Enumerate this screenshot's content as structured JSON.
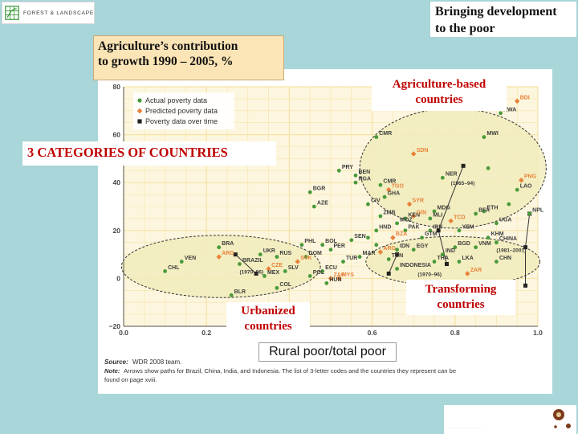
{
  "logo": {
    "text": "FOREST & LANDSCAPE",
    "icon": "grid-leaf-icon",
    "color": "#3a9a3a"
  },
  "header": {
    "title_line1": "Bringing development",
    "title_line2": "to the poor"
  },
  "callouts": {
    "agri_line1": "Agriculture’s contribution",
    "agri_line2": "to growth 1990 – 2005, %",
    "categories": "3 CATEGORIES OF COUNTRIES",
    "based_line1": "Agriculture-based",
    "based_line2": "countries",
    "transforming_line1": "Transforming",
    "transforming_line2": "countries",
    "urbanized_line1": "Urbanized",
    "urbanized_line2": "countries",
    "rural_axis": "Rural poor/total poor"
  },
  "source": {
    "source_label": "Source:",
    "source_text": "WDR 2008 team.",
    "note_label": "Note:",
    "note_text_1": "Arrows show paths for Brazil, China, India, and Indonesia. The list of 3-letter codes and the countries they represent can be",
    "note_text_2": "found on page xviii."
  },
  "colors": {
    "actual": "#4a9a3a",
    "predicted": "#e8823a",
    "over_time": "#222222",
    "ellipse_fill": "#f1ecbc",
    "grid": "#f6e3a3",
    "accent_red": "#c00000"
  },
  "chart_data": {
    "type": "scatter",
    "xlabel": "Rural poor/total poor",
    "ylabel": "",
    "xlim": [
      0,
      1
    ],
    "ylim": [
      -20,
      80
    ],
    "x_ticks": [
      "0.0",
      "0.2",
      "0.4",
      "0.6",
      "0.8",
      "1.0"
    ],
    "y_ticks": [
      "−20",
      "0",
      "20",
      "40",
      "60",
      "80"
    ],
    "x_tick_values": [
      0,
      0.2,
      0.4,
      0.6,
      0.8,
      1.0
    ],
    "y_tick_values": [
      -20,
      0,
      20,
      40,
      60,
      80
    ],
    "grid": true,
    "legend": {
      "position": "top-left",
      "entries": [
        {
          "label": "Actual poverty data",
          "marker": "circle",
          "color": "#4a9a3a"
        },
        {
          "label": "Predicted poverty data",
          "marker": "diamond",
          "color": "#e8823a"
        },
        {
          "label": "Poverty data over time",
          "marker": "square",
          "color": "#222222"
        }
      ]
    },
    "groups": [
      {
        "name": "Agriculture-based countries",
        "cx": 0.795,
        "cy": 46,
        "rx": 0.225,
        "ry": 25
      },
      {
        "name": "Transforming countries",
        "cx": 0.795,
        "cy": 7,
        "rx": 0.21,
        "ry": 10.5
      },
      {
        "name": "Urbanized countries",
        "cx": 0.235,
        "cy": 5,
        "rx": 0.24,
        "ry": 13
      }
    ],
    "points": [
      {
        "label": "BDI",
        "x": 0.95,
        "y": 74,
        "kind": "predicted"
      },
      {
        "label": "RWA",
        "x": 0.91,
        "y": 69,
        "kind": "actual"
      },
      {
        "label": "MWI",
        "x": 0.87,
        "y": 59,
        "kind": "actual"
      },
      {
        "label": "CMR",
        "x": 0.61,
        "y": 59,
        "kind": "actual"
      },
      {
        "label": "SDN",
        "x": 0.7,
        "y": 52,
        "kind": "predicted"
      },
      {
        "label": "PRY",
        "x": 0.52,
        "y": 45,
        "kind": "actual"
      },
      {
        "label": "BEN",
        "x": 0.56,
        "y": 43,
        "kind": "actual"
      },
      {
        "label": "NGA",
        "x": 0.56,
        "y": 40,
        "kind": "actual"
      },
      {
        "label": "NER",
        "x": 0.77,
        "y": 42,
        "kind": "actual"
      },
      {
        "label": "PNG",
        "x": 0.96,
        "y": 41,
        "kind": "predicted"
      },
      {
        "label": "LAO",
        "x": 0.95,
        "y": 37,
        "kind": "actual"
      },
      {
        "label": "CMR",
        "x": 0.62,
        "y": 39,
        "kind": "actual"
      },
      {
        "label": "TGO",
        "x": 0.64,
        "y": 37,
        "kind": "predicted"
      },
      {
        "label": "GHA",
        "x": 0.63,
        "y": 34,
        "kind": "actual"
      },
      {
        "label": "BGR",
        "x": 0.45,
        "y": 36,
        "kind": "actual"
      },
      {
        "label": "AZE",
        "x": 0.46,
        "y": 30,
        "kind": "actual"
      },
      {
        "label": "CIV",
        "x": 0.59,
        "y": 31,
        "kind": "actual"
      },
      {
        "label": "SYR",
        "x": 0.69,
        "y": 31,
        "kind": "predicted"
      },
      {
        "label": "MDG",
        "x": 0.75,
        "y": 28,
        "kind": "actual"
      },
      {
        "label": "ETH",
        "x": 0.87,
        "y": 28,
        "kind": "actual"
      },
      {
        "label": "BFA",
        "x": 0.85,
        "y": 27,
        "kind": "actual"
      },
      {
        "label": "NPL",
        "x": 0.98,
        "y": 27,
        "kind": "actual"
      },
      {
        "label": "ZMB",
        "x": 0.62,
        "y": 26,
        "kind": "actual"
      },
      {
        "label": "KEN",
        "x": 0.68,
        "y": 25,
        "kind": "actual"
      },
      {
        "label": "GIN",
        "x": 0.7,
        "y": 26,
        "kind": "predicted"
      },
      {
        "label": "MLI",
        "x": 0.74,
        "y": 25,
        "kind": "actual"
      },
      {
        "label": "TCD",
        "x": 0.79,
        "y": 24,
        "kind": "predicted"
      },
      {
        "label": "UGA",
        "x": 0.9,
        "y": 23,
        "kind": "actual"
      },
      {
        "label": "MOZ",
        "x": 0.66,
        "y": 23,
        "kind": "actual"
      },
      {
        "label": "HND",
        "x": 0.61,
        "y": 20,
        "kind": "actual"
      },
      {
        "label": "PAK",
        "x": 0.68,
        "y": 20,
        "kind": "actual"
      },
      {
        "label": "IRN",
        "x": 0.74,
        "y": 20,
        "kind": "actual"
      },
      {
        "label": "YEM",
        "x": 0.81,
        "y": 20,
        "kind": "actual"
      },
      {
        "label": "KHM",
        "x": 0.88,
        "y": 17,
        "kind": "actual"
      },
      {
        "label": "BZA",
        "x": 0.65,
        "y": 17,
        "kind": "predicted"
      },
      {
        "label": "GTM",
        "x": 0.72,
        "y": 17,
        "kind": "actual"
      },
      {
        "label": "SEN",
        "x": 0.55,
        "y": 16,
        "kind": "actual"
      },
      {
        "label": "BGD",
        "x": 0.8,
        "y": 13,
        "kind": "actual"
      },
      {
        "label": "VNM",
        "x": 0.85,
        "y": 13,
        "kind": "actual"
      },
      {
        "label": "CHINA",
        "x": 0.9,
        "y": 15,
        "kind": "actual"
      },
      {
        "label": "PHL",
        "x": 0.43,
        "y": 14,
        "kind": "actual"
      },
      {
        "label": "BOL",
        "x": 0.48,
        "y": 14,
        "kind": "actual"
      },
      {
        "label": "PER",
        "x": 0.5,
        "y": 12,
        "kind": "actual"
      },
      {
        "label": "EGY",
        "x": 0.7,
        "y": 12,
        "kind": "actual"
      },
      {
        "label": "ARG",
        "x": 0.62,
        "y": 11,
        "kind": "predicted"
      },
      {
        "label": "IDN",
        "x": 0.66,
        "y": 12,
        "kind": "actual"
      },
      {
        "label": "IND",
        "x": 0.77,
        "y": 10,
        "kind": "actual"
      },
      {
        "label": "BRA",
        "x": 0.23,
        "y": 13,
        "kind": "actual"
      },
      {
        "label": "ARG",
        "x": 0.23,
        "y": 9,
        "kind": "predicted"
      },
      {
        "label": "UKR",
        "x": 0.33,
        "y": 10,
        "kind": "actual"
      },
      {
        "label": "RUS",
        "x": 0.37,
        "y": 9,
        "kind": "actual"
      },
      {
        "label": "DOM",
        "x": 0.44,
        "y": 9,
        "kind": "actual"
      },
      {
        "label": "MAR",
        "x": 0.57,
        "y": 9,
        "kind": "actual"
      },
      {
        "label": "TUN",
        "x": 0.64,
        "y": 8,
        "kind": "actual"
      },
      {
        "label": "THA",
        "x": 0.75,
        "y": 7,
        "kind": "actual"
      },
      {
        "label": "LKA",
        "x": 0.81,
        "y": 7,
        "kind": "actual"
      },
      {
        "label": "CHN",
        "x": 0.9,
        "y": 7,
        "kind": "actual"
      },
      {
        "label": "VEN",
        "x": 0.14,
        "y": 7,
        "kind": "actual"
      },
      {
        "label": "BRAZIL",
        "x": 0.28,
        "y": 6,
        "kind": "actual"
      },
      {
        "label": "SVK",
        "x": 0.42,
        "y": 7,
        "kind": "predicted"
      },
      {
        "label": "TUR",
        "x": 0.53,
        "y": 7,
        "kind": "actual"
      },
      {
        "label": "INDONESIA",
        "x": 0.66,
        "y": 4,
        "kind": "actual"
      },
      {
        "label": "CZE",
        "x": 0.35,
        "y": 4,
        "kind": "predicted"
      },
      {
        "label": "CHL",
        "x": 0.1,
        "y": 3,
        "kind": "actual"
      },
      {
        "label": "SLV",
        "x": 0.39,
        "y": 3,
        "kind": "actual"
      },
      {
        "label": "ECU",
        "x": 0.48,
        "y": 3,
        "kind": "actual"
      },
      {
        "label": "MEX",
        "x": 0.34,
        "y": 1,
        "kind": "actual"
      },
      {
        "label": "POL",
        "x": 0.45,
        "y": 1,
        "kind": "actual"
      },
      {
        "label": "ZAF",
        "x": 0.5,
        "y": 0,
        "kind": "predicted"
      },
      {
        "label": "MYS",
        "x": 0.52,
        "y": 0,
        "kind": "predicted"
      },
      {
        "label": "ZAR",
        "x": 0.83,
        "y": 2,
        "kind": "predicted"
      },
      {
        "label": "HUN",
        "x": 0.49,
        "y": -2,
        "kind": "actual"
      },
      {
        "label": "COL",
        "x": 0.37,
        "y": -4,
        "kind": "actual"
      },
      {
        "label": "BLR",
        "x": 0.26,
        "y": -7,
        "kind": "actual"
      },
      {
        "label": "",
        "x": 0.59,
        "y": 17,
        "kind": "actual"
      },
      {
        "label": "",
        "x": 0.61,
        "y": 14,
        "kind": "actual"
      },
      {
        "label": "",
        "x": 0.88,
        "y": 46,
        "kind": "actual"
      },
      {
        "label": "",
        "x": 0.93,
        "y": 31,
        "kind": "actual"
      }
    ],
    "annotations": [
      {
        "text": "(1965–94)",
        "x": 0.79,
        "y": 39
      },
      {
        "text": "(1970–96)",
        "x": 0.28,
        "y": 2
      },
      {
        "text": "(1981–2001)",
        "x": 0.9,
        "y": 11
      },
      {
        "text": "(1970–96)",
        "x": 0.71,
        "y": 1
      }
    ],
    "paths": [
      {
        "name": "India",
        "points": [
          [
            0.82,
            47
          ],
          [
            0.76,
            20
          ],
          [
            0.78,
            6
          ]
        ]
      },
      {
        "name": "China",
        "points": [
          [
            0.98,
            27
          ],
          [
            0.97,
            13
          ],
          [
            0.97,
            -3
          ]
        ]
      },
      {
        "name": "Brazil",
        "points": [
          [
            0.27,
            10
          ],
          [
            0.32,
            2
          ]
        ]
      },
      {
        "name": "Indonesia",
        "points": [
          [
            0.66,
            10
          ],
          [
            0.64,
            2
          ]
        ]
      }
    ]
  }
}
